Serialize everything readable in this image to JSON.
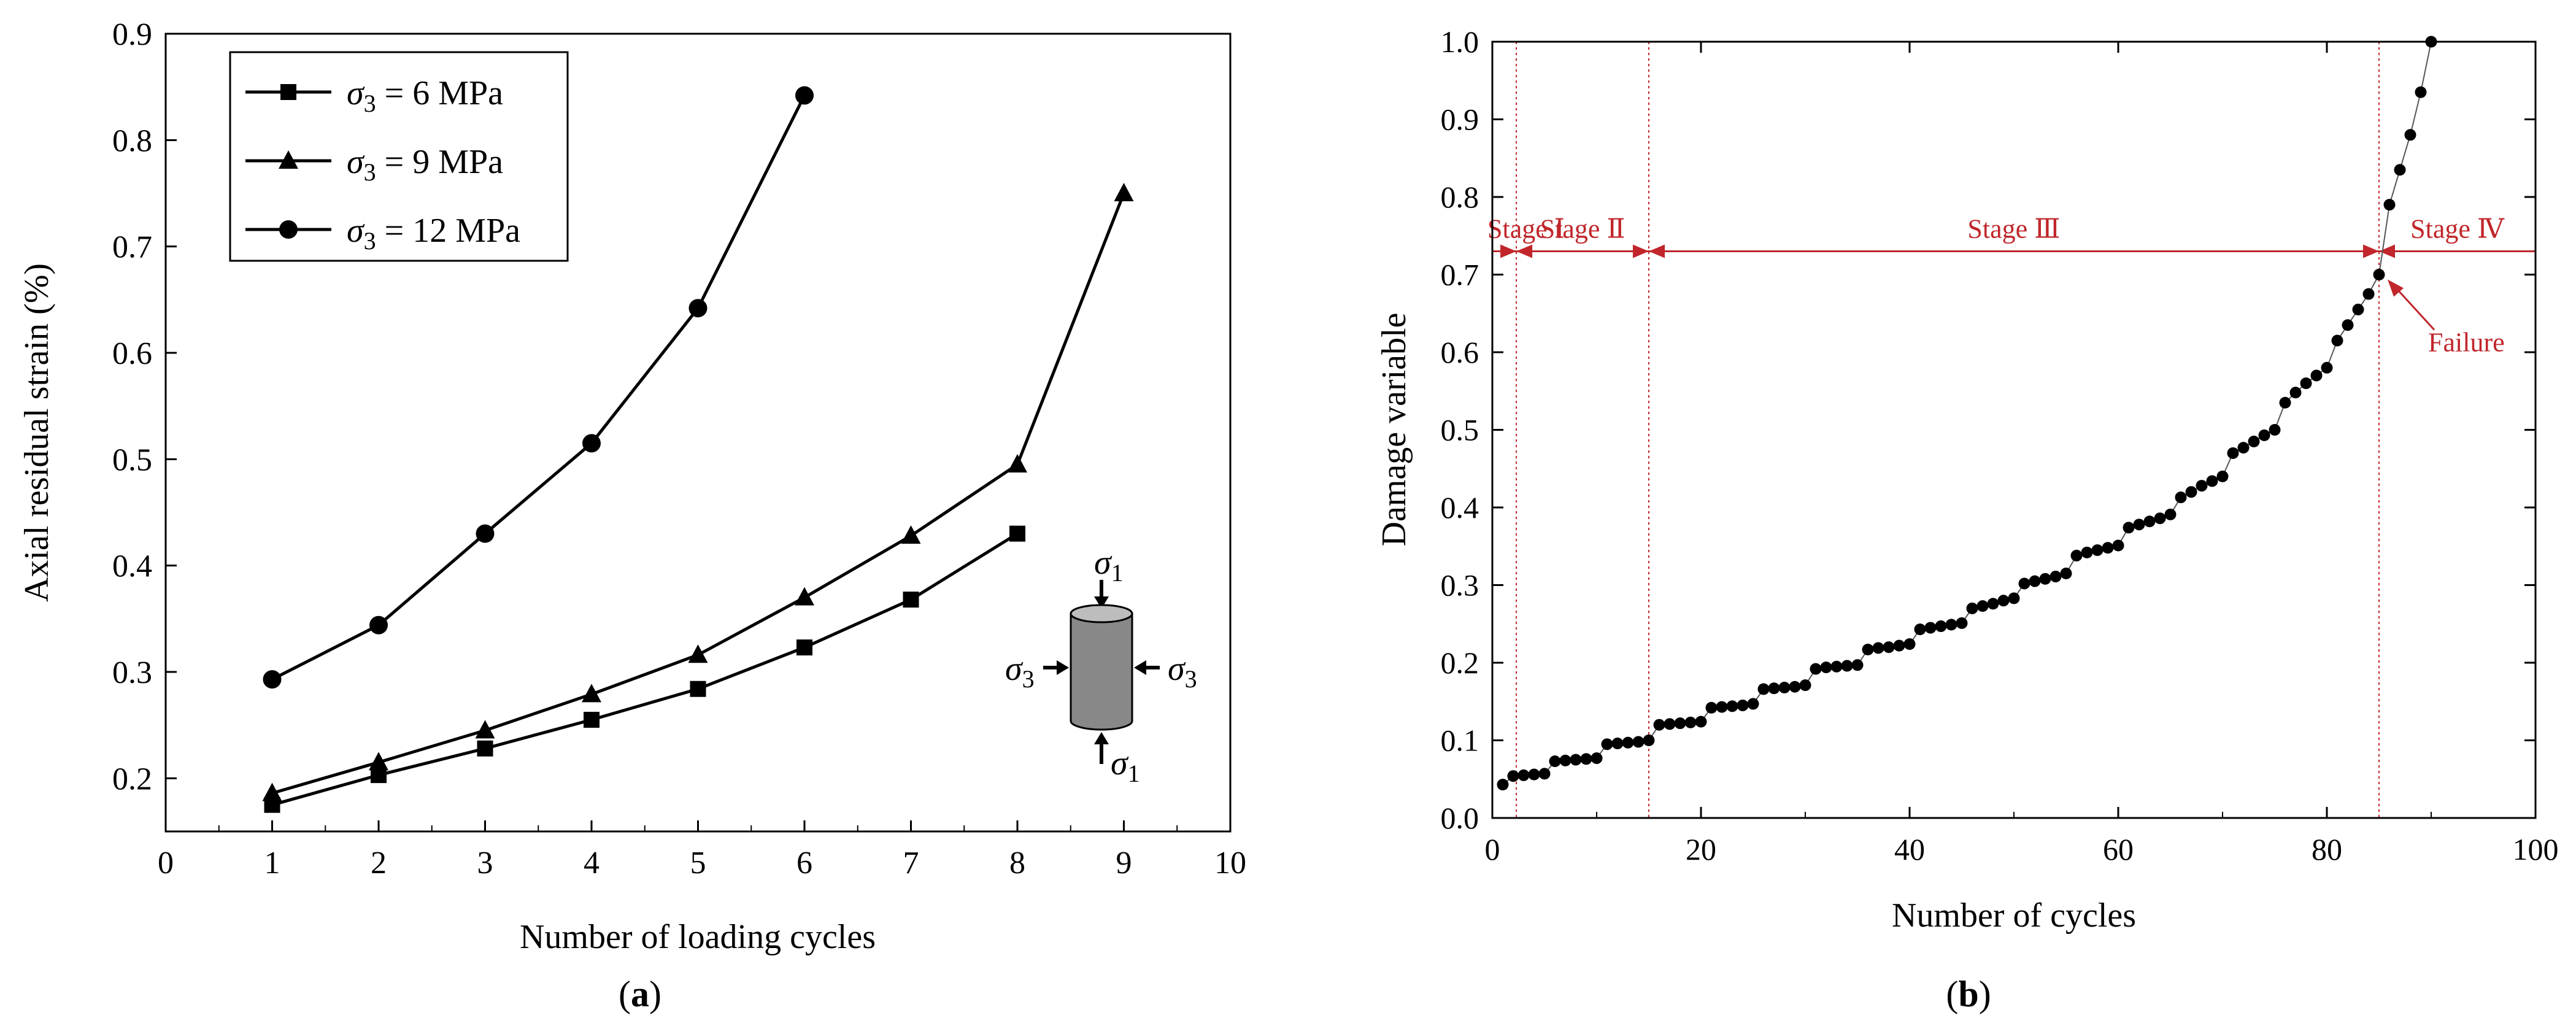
{
  "chart_data": [
    {
      "type": "line",
      "panel_label": "a",
      "title": "",
      "xlabel": "Number of loading cycles",
      "ylabel": "Axial residual strain (%)",
      "xlim": [
        0,
        10
      ],
      "ylim": [
        0.15,
        0.9
      ],
      "xticks": [
        0,
        1,
        2,
        3,
        4,
        5,
        6,
        7,
        8,
        9,
        10
      ],
      "yticks": [
        0.2,
        0.3,
        0.4,
        0.5,
        0.6,
        0.7,
        0.8,
        0.9
      ],
      "legend_position": "top-left",
      "series": [
        {
          "name": "σ3 = 6 MPa",
          "legend_sub": "3",
          "legend_value": " = 6 MPa",
          "marker": "square",
          "x": [
            1,
            2,
            3,
            4,
            5,
            6,
            7,
            8
          ],
          "values": [
            0.175,
            0.203,
            0.228,
            0.255,
            0.284,
            0.323,
            0.368,
            0.43
          ]
        },
        {
          "name": "σ3 = 9 MPa",
          "legend_sub": "3",
          "legend_value": " = 9 MPa",
          "marker": "triangle",
          "x": [
            1,
            2,
            3,
            4,
            5,
            6,
            7,
            8,
            9
          ],
          "values": [
            0.186,
            0.215,
            0.245,
            0.279,
            0.316,
            0.37,
            0.428,
            0.495,
            0.75
          ]
        },
        {
          "name": "σ3 = 12 MPa",
          "legend_sub": "3",
          "legend_value": " = 12 MPa",
          "marker": "circle",
          "x": [
            1,
            2,
            3,
            4,
            5,
            6
          ],
          "values": [
            0.293,
            0.344,
            0.43,
            0.515,
            0.642,
            0.842
          ]
        }
      ],
      "inset": {
        "top_label": "σ",
        "top_sub": "1",
        "bottom_label": "σ",
        "bottom_sub": "1",
        "left_label": "σ",
        "left_sub": "3",
        "right_label": "σ",
        "right_sub": "3"
      }
    },
    {
      "type": "scatter",
      "panel_label": "b",
      "title": "",
      "xlabel": "Number of cycles",
      "ylabel": "Damage variable",
      "xlim": [
        0,
        100
      ],
      "ylim": [
        0,
        1.0
      ],
      "xticks": [
        0,
        20,
        40,
        60,
        80,
        100
      ],
      "yticks": [
        0.0,
        0.1,
        0.2,
        0.3,
        0.4,
        0.5,
        0.6,
        0.7,
        0.8,
        0.9,
        1.0
      ],
      "series": [
        {
          "name": "Damage variable",
          "x": [
            1,
            2,
            3,
            4,
            5,
            6,
            7,
            8,
            9,
            10,
            11,
            12,
            13,
            14,
            15,
            16,
            17,
            18,
            19,
            20,
            21,
            22,
            23,
            24,
            25,
            26,
            27,
            28,
            29,
            30,
            31,
            32,
            33,
            34,
            35,
            36,
            37,
            38,
            39,
            40,
            41,
            42,
            43,
            44,
            45,
            46,
            47,
            48,
            49,
            50,
            51,
            52,
            53,
            54,
            55,
            56,
            57,
            58,
            59,
            60,
            61,
            62,
            63,
            64,
            65,
            66,
            67,
            68,
            69,
            70,
            71,
            72,
            73,
            74,
            75,
            76,
            77,
            78,
            79,
            80,
            81,
            82,
            83,
            84,
            85,
            86,
            87,
            88,
            89,
            90
          ],
          "values": [
            0.043,
            0.054,
            0.055,
            0.056,
            0.057,
            0.073,
            0.074,
            0.075,
            0.076,
            0.077,
            0.095,
            0.096,
            0.097,
            0.098,
            0.1,
            0.12,
            0.121,
            0.122,
            0.123,
            0.124,
            0.142,
            0.143,
            0.144,
            0.145,
            0.147,
            0.166,
            0.167,
            0.168,
            0.169,
            0.171,
            0.192,
            0.194,
            0.195,
            0.196,
            0.197,
            0.217,
            0.219,
            0.22,
            0.222,
            0.224,
            0.243,
            0.245,
            0.247,
            0.249,
            0.251,
            0.27,
            0.273,
            0.276,
            0.28,
            0.283,
            0.302,
            0.305,
            0.308,
            0.311,
            0.315,
            0.338,
            0.342,
            0.345,
            0.348,
            0.351,
            0.374,
            0.378,
            0.382,
            0.386,
            0.391,
            0.413,
            0.42,
            0.428,
            0.434,
            0.44,
            0.47,
            0.477,
            0.485,
            0.493,
            0.5,
            0.535,
            0.548,
            0.56,
            0.57,
            0.58,
            0.615,
            0.635,
            0.655,
            0.675,
            0.7,
            0.79,
            0.835,
            0.88,
            0.935,
            1.0
          ]
        }
      ],
      "stage_boundaries": [
        2.3,
        15,
        85
      ],
      "stage_arrow_y": 0.73,
      "stages": [
        {
          "label": "Stage Ⅰ",
          "from": 0,
          "to": 2.3
        },
        {
          "label": "Stage Ⅱ",
          "from": 2.3,
          "to": 15
        },
        {
          "label": "Stage Ⅲ",
          "from": 15,
          "to": 85
        },
        {
          "label": "Stage Ⅳ",
          "from": 85,
          "to": 100
        }
      ],
      "annotation": {
        "text": "Failure",
        "x": 85,
        "y": 0.7
      },
      "accent_color": "#c0262b"
    }
  ]
}
